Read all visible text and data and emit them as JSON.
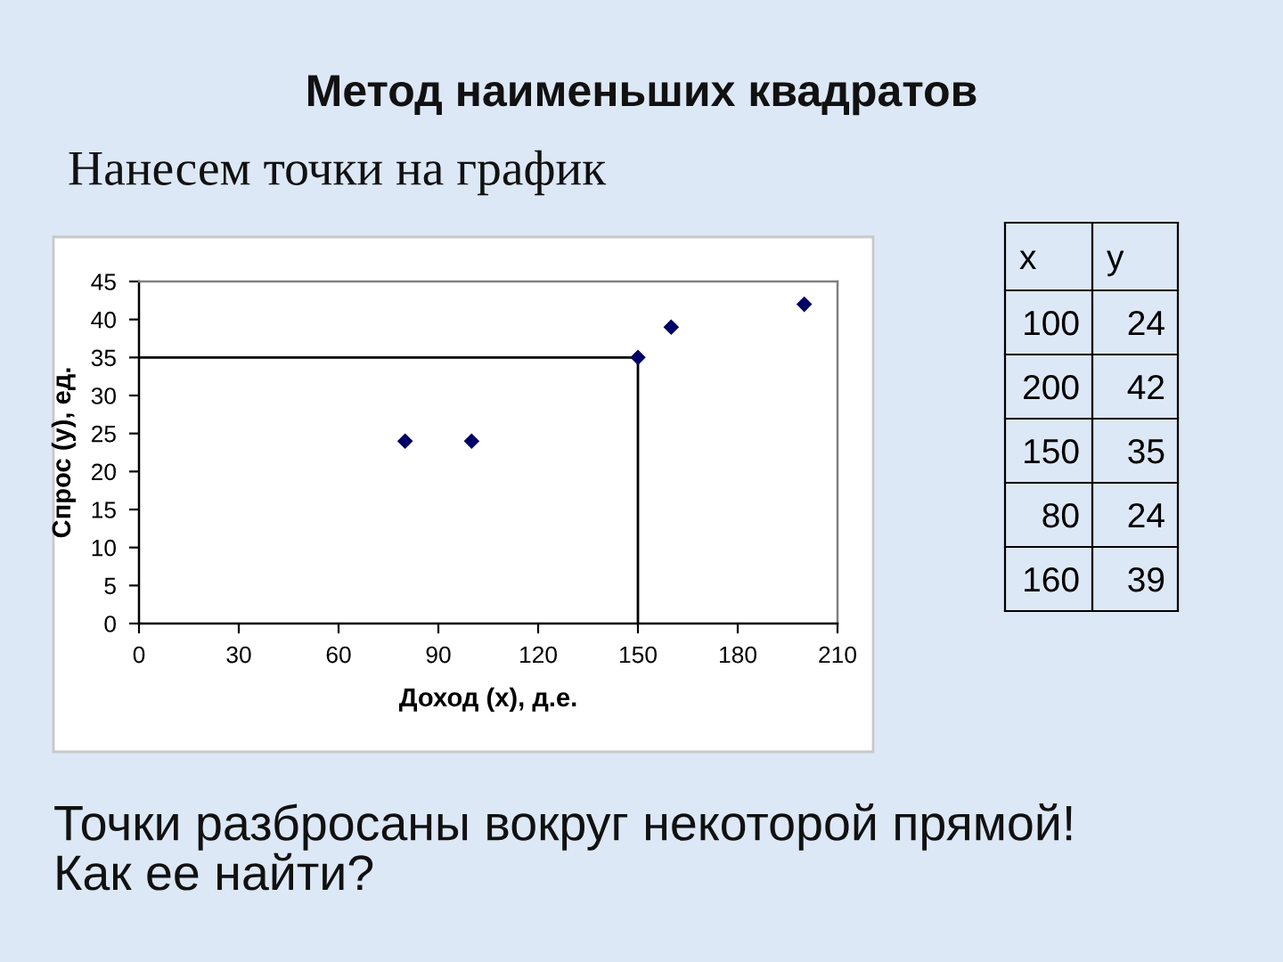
{
  "chart_data": [
    {
      "type": "scatter",
      "title": "Метод наименьших квадратов",
      "subtitle": "Нанесем точки на график",
      "xlabel": "Доход (x), д.е.",
      "ylabel": "Спрос (y), ед.",
      "annotations": [
        "Точки разбросаны вокруг некоторой прямой!\nКак ее найти?"
      ],
      "series": [
        {
          "color": "#000066",
          "marker": "diamond",
          "x": [
            100,
            200,
            150,
            80,
            160
          ],
          "values": [
            24,
            42,
            35,
            24,
            39
          ]
        },
        {
          "type": "line",
          "color": "#000000",
          "marker": "none",
          "line_style": "solid",
          "x": [
            0,
            150,
            150
          ],
          "values": [
            35,
            35,
            0
          ]
        }
      ],
      "xlim": [
        0,
        210
      ],
      "xticks": [
        0,
        30,
        60,
        90,
        120,
        150,
        180,
        210
      ],
      "ylim": [
        0,
        45
      ],
      "yticks": [
        0,
        5,
        10,
        15,
        20,
        25,
        30,
        35,
        40,
        45
      ],
      "grid": false,
      "legend": false
    },
    {
      "type": "other",
      "annotations": [
        "x",
        "y",
        "100",
        "24",
        "200",
        "42",
        "150",
        "35",
        "80",
        "24",
        "160",
        "39"
      ]
    }
  ]
}
